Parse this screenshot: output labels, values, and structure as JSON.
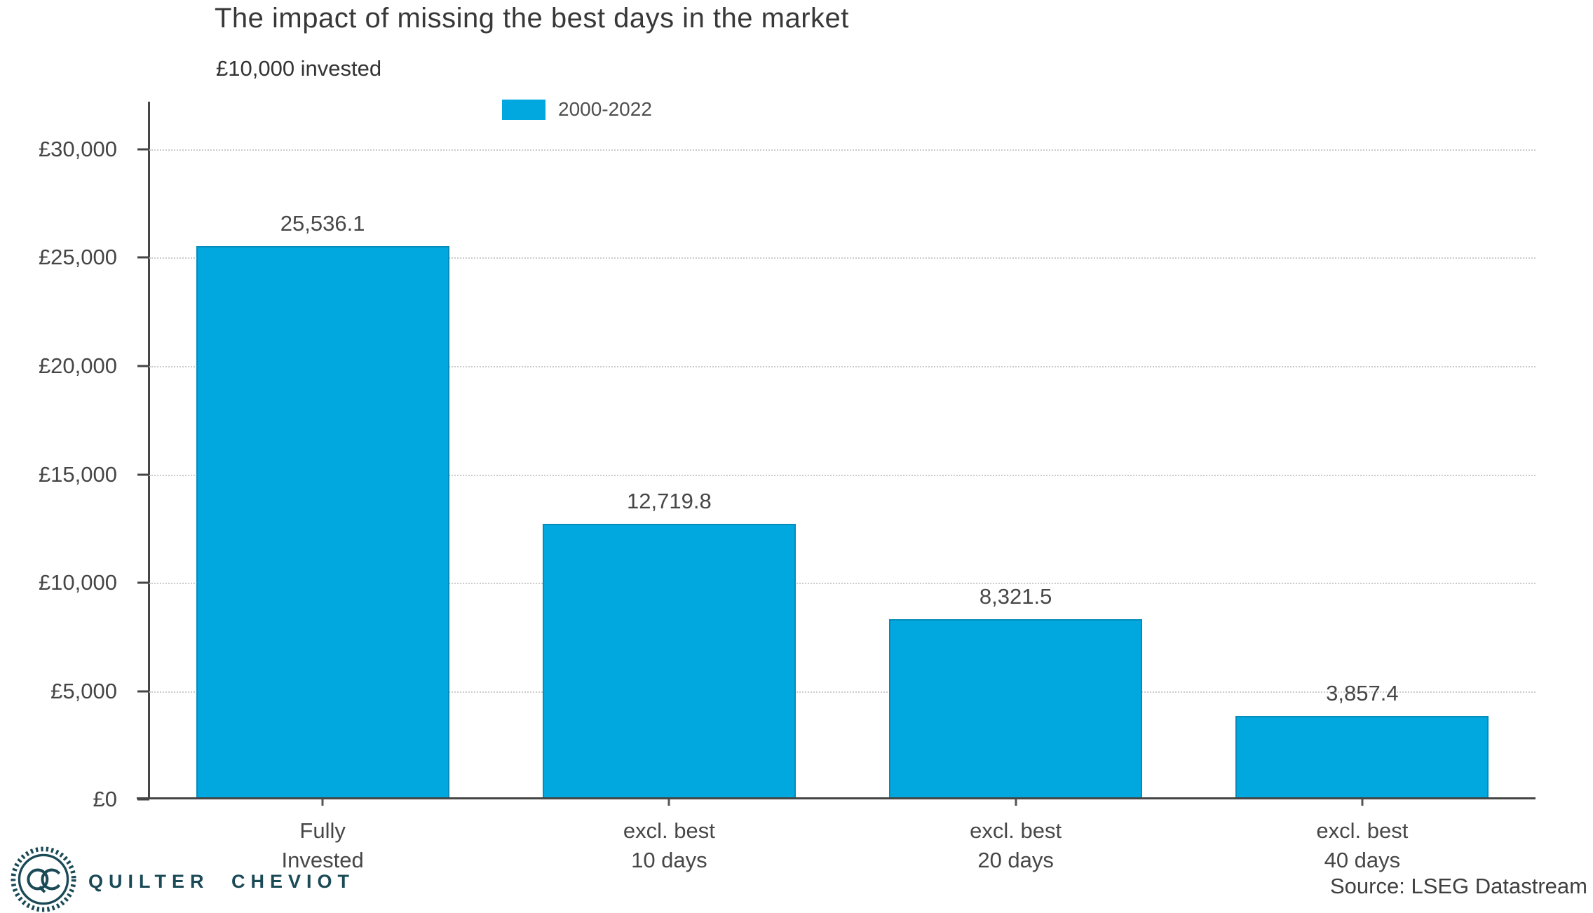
{
  "header": {
    "title": "The impact of missing the best days in the market",
    "subtitle": "£10,000 invested"
  },
  "legend": {
    "label": "2000-2022",
    "swatch_color": "#00a8df",
    "position": "top"
  },
  "chart_data": {
    "type": "bar",
    "title": "The impact of missing the best days in the market",
    "subtitle": "£10,000 invested",
    "series": [
      {
        "name": "2000-2022",
        "values": [
          25536.1,
          12719.8,
          8321.5,
          3857.4
        ]
      }
    ],
    "categories": [
      [
        "Fully",
        "Invested"
      ],
      [
        "excl. best",
        "10 days"
      ],
      [
        "excl. best",
        "20 days"
      ],
      [
        "excl. best",
        "40 days"
      ]
    ],
    "values": [
      25536.1,
      12719.8,
      8321.5,
      3857.4
    ],
    "value_labels": [
      "25,536.1",
      "12,719.8",
      "8,321.5",
      "3,857.4"
    ],
    "yticks": [
      {
        "label": "£30,000",
        "value": 30000
      },
      {
        "label": "£25,000",
        "value": 25000
      },
      {
        "label": "£20,000",
        "value": 20000
      },
      {
        "label": "£15,000",
        "value": 15000
      },
      {
        "label": "£10,000",
        "value": 10000
      },
      {
        "label": "£5,000",
        "value": 5000
      },
      {
        "label": "£0",
        "value": 0
      }
    ],
    "ylim": [
      0,
      30000
    ],
    "xlabel": "",
    "ylabel": "",
    "grid": "horizontal-dotted",
    "legend_position": "top",
    "bar_color": "#00a8df"
  },
  "footer": {
    "logo_monogram": "QC",
    "logo_text": "QUILTER CHEVIOT",
    "source": "Source: LSEG Datastream"
  },
  "colors": {
    "bar": "#00a8df",
    "logo_teal": "#1b4a57",
    "text": "#3f3f3f",
    "gridline": "#cbcbcb",
    "axis": "#454545"
  }
}
